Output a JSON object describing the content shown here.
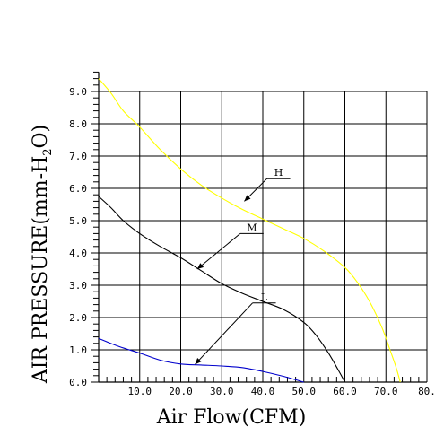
{
  "chart_data": {
    "type": "line",
    "title": "",
    "xlabel": "Air Flow(CFM)",
    "ylabel_main": "AIR PRESSURE(mm-H",
    "ylabel_sub": "2",
    "ylabel_end": "O)",
    "xlim": [
      0,
      80
    ],
    "ylim": [
      0,
      9.0
    ],
    "grid": true,
    "x_ticks": [
      10,
      20,
      30,
      40,
      50,
      60,
      70,
      80
    ],
    "x_tick_labels": [
      "10.0",
      "20.0",
      "30.0",
      "40.0",
      "50.0",
      "60.0",
      "70.0",
      "80."
    ],
    "y_ticks": [
      0,
      1,
      2,
      3,
      4,
      5,
      6,
      7,
      8,
      9
    ],
    "y_tick_labels": [
      "0.0",
      "1.0",
      "2.0",
      "3.0",
      "4.0",
      "5.0",
      "6.0",
      "7.0",
      "8.0",
      "9.0"
    ],
    "series": [
      {
        "name": "H",
        "color": "#ffff00",
        "points": [
          [
            0,
            9.4
          ],
          [
            3,
            8.95
          ],
          [
            6,
            8.4
          ],
          [
            10,
            7.9
          ],
          [
            15,
            7.2
          ],
          [
            20,
            6.6
          ],
          [
            25,
            6.1
          ],
          [
            30,
            5.7
          ],
          [
            35,
            5.35
          ],
          [
            40,
            5.05
          ],
          [
            45,
            4.75
          ],
          [
            50,
            4.45
          ],
          [
            55,
            4.05
          ],
          [
            60,
            3.55
          ],
          [
            63,
            3.1
          ],
          [
            66,
            2.5
          ],
          [
            69,
            1.7
          ],
          [
            71,
            1.0
          ],
          [
            72.5,
            0.45
          ],
          [
            73.5,
            0.0
          ]
        ],
        "label_point": [
          35.5,
          5.6
        ],
        "label_text_at": [
          41,
          6.3
        ]
      },
      {
        "name": "M",
        "color": "#000000",
        "points": [
          [
            0,
            5.75
          ],
          [
            3,
            5.4
          ],
          [
            6,
            5.0
          ],
          [
            10,
            4.6
          ],
          [
            15,
            4.2
          ],
          [
            20,
            3.85
          ],
          [
            25,
            3.45
          ],
          [
            30,
            3.05
          ],
          [
            35,
            2.75
          ],
          [
            40,
            2.5
          ],
          [
            45,
            2.25
          ],
          [
            50,
            1.85
          ],
          [
            53,
            1.45
          ],
          [
            56,
            0.9
          ],
          [
            58.5,
            0.35
          ],
          [
            60,
            0.0
          ]
        ],
        "label_point": [
          24,
          3.5
        ],
        "label_text_at": [
          34.5,
          4.6
        ]
      },
      {
        "name": "L",
        "color": "#0000cc",
        "points": [
          [
            0,
            1.35
          ],
          [
            5,
            1.1
          ],
          [
            10,
            0.9
          ],
          [
            15,
            0.68
          ],
          [
            20,
            0.56
          ],
          [
            25,
            0.53
          ],
          [
            30,
            0.5
          ],
          [
            35,
            0.45
          ],
          [
            40,
            0.33
          ],
          [
            45,
            0.18
          ],
          [
            50,
            0.0
          ]
        ],
        "label_point": [
          23.5,
          0.55
        ],
        "label_text_at": [
          37.5,
          2.45
        ]
      }
    ]
  }
}
